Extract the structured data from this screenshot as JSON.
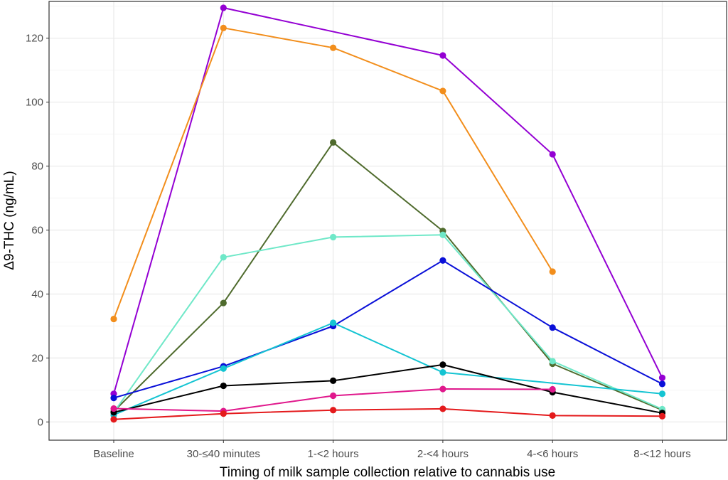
{
  "chart_data": {
    "type": "line",
    "title": "",
    "xlabel": "Timing of milk sample collection relative to cannabis use",
    "ylabel": "Δ9-THC (ng/mL)",
    "categories": [
      "Baseline",
      "30-≤40 minutes",
      "1-<2 hours",
      "2-<4 hours",
      "4-<6 hours",
      "8-<12 hours"
    ],
    "ylim": [
      -5.7,
      131.5
    ],
    "yticks": [
      0,
      20,
      40,
      60,
      80,
      100,
      120
    ],
    "grid": true,
    "legend": "none",
    "series": [
      {
        "name": "purple",
        "color": "#9400d3",
        "values": [
          8.8,
          129.5,
          null,
          114.6,
          83.7,
          13.8
        ]
      },
      {
        "name": "orange",
        "color": "#f28e1c",
        "values": [
          32.2,
          123.2,
          117.0,
          103.5,
          47.0,
          null
        ]
      },
      {
        "name": "olive",
        "color": "#4f6b2d",
        "values": [
          3.3,
          37.2,
          87.4,
          59.7,
          18.2,
          3.7
        ]
      },
      {
        "name": "aquamarine",
        "color": "#6fe8c8",
        "values": [
          3.0,
          51.5,
          57.8,
          58.5,
          19.0,
          4.0
        ]
      },
      {
        "name": "blue",
        "color": "#0a10d8",
        "values": [
          7.5,
          17.4,
          30.0,
          50.5,
          29.5,
          11.9
        ]
      },
      {
        "name": "cyan",
        "color": "#14c4d2",
        "values": [
          2.2,
          16.7,
          31.0,
          15.5,
          null,
          8.8
        ]
      },
      {
        "name": "black",
        "color": "#000000",
        "values": [
          3.0,
          11.3,
          12.9,
          17.9,
          9.3,
          2.8
        ]
      },
      {
        "name": "pink",
        "color": "#e0188c",
        "values": [
          4.2,
          3.4,
          8.2,
          10.3,
          10.2,
          null
        ]
      },
      {
        "name": "red",
        "color": "#e41a1c",
        "values": [
          0.8,
          2.6,
          3.7,
          4.1,
          2.0,
          1.8
        ]
      }
    ]
  }
}
